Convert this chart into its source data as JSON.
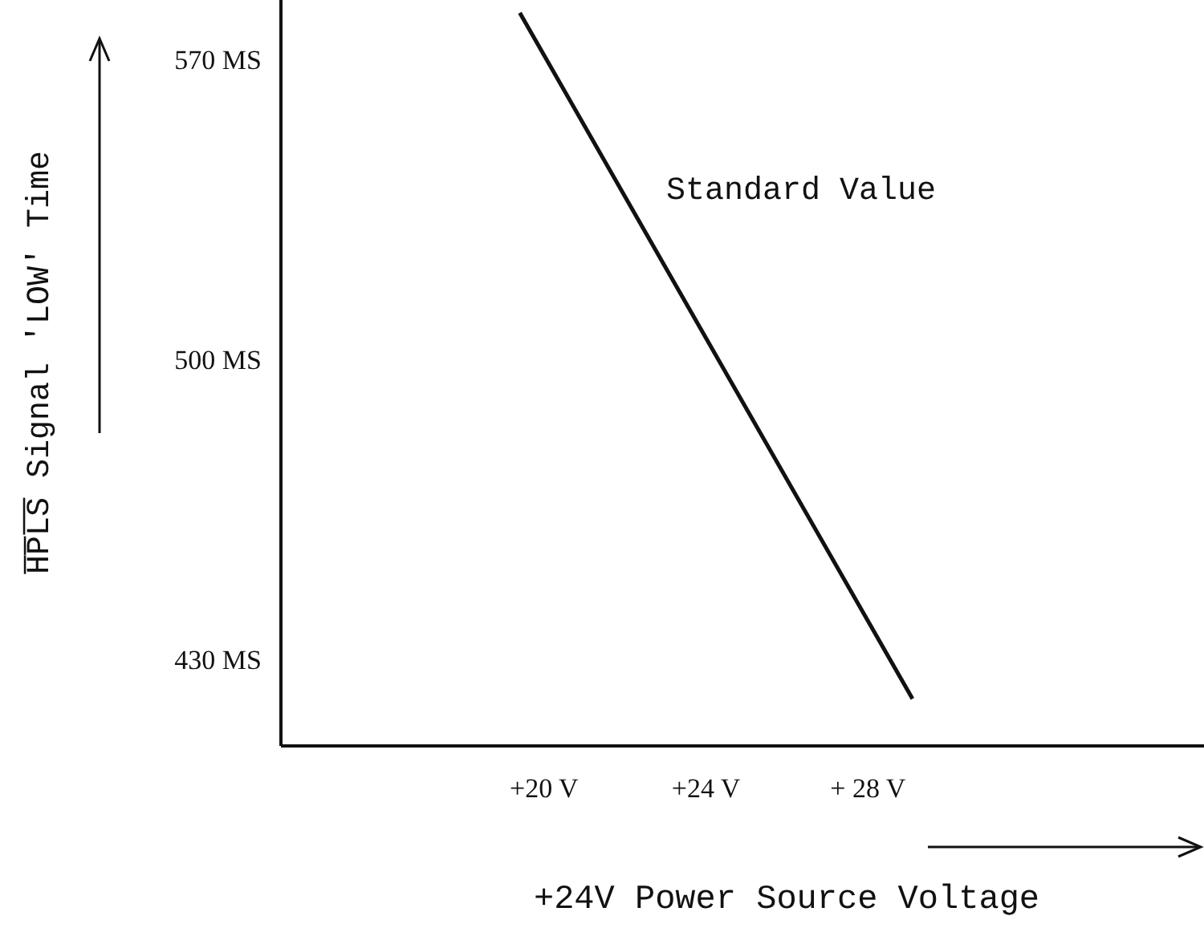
{
  "chart_data": {
    "type": "line",
    "xlabel": "+24V Power Source Voltage",
    "ylabel": "H̅P̅L̅S̅ Signal 'LOW' Time",
    "x": [
      19.4,
      29.1
    ],
    "values": [
      581,
      421
    ],
    "color": "#111111",
    "xlim": [
      13.5,
      36.3
    ],
    "xticks": [
      {
        "value": 20,
        "label": "+20 V"
      },
      {
        "value": 24,
        "label": "+24 V"
      },
      {
        "value": 28,
        "label": "+ 28 V"
      }
    ],
    "ylim": [
      410,
      584
    ],
    "yticks": [
      {
        "value": 430,
        "label": "430 MS"
      },
      {
        "value": 500,
        "label": "500 MS"
      },
      {
        "value": 570,
        "label": "570 MS"
      }
    ],
    "annotations": [
      "Standard Value"
    ],
    "grid": false,
    "marker": "none",
    "line_style": "solid"
  }
}
